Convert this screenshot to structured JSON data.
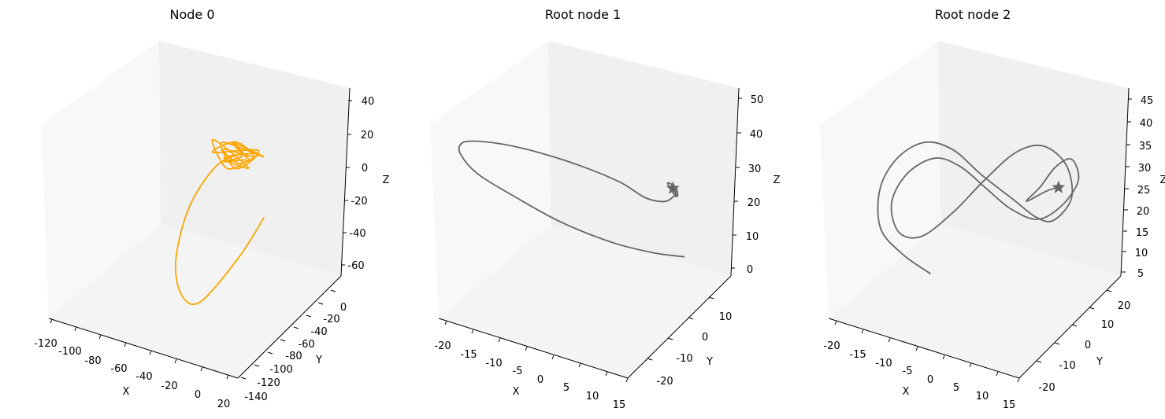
{
  "chart_data": [
    {
      "type": "line3d",
      "title": "Node 0",
      "xlabel": "X",
      "ylabel": "Y",
      "zlabel": "Z",
      "x_ticks": [
        -120,
        -100,
        -80,
        -60,
        -40,
        -20,
        0,
        20
      ],
      "y_ticks": [
        0,
        -20,
        -40,
        -60,
        -80,
        -100,
        -120,
        -140
      ],
      "z_ticks": [
        40,
        20,
        0,
        -20,
        -40,
        -60
      ],
      "series": [
        {
          "color": "#ffa500",
          "marker": "none",
          "note_points": "trajectory in data units (x, y, z)",
          "x": [
            -35,
            -20,
            -30,
            -10,
            -40,
            -25,
            -15,
            -45,
            -30,
            -20,
            -38,
            -28,
            -12,
            -34,
            -22,
            -48,
            -30,
            -18,
            -42,
            -26,
            -35,
            -50,
            -60,
            -55,
            -40,
            -20,
            0,
            10
          ],
          "y": [
            -40,
            -45,
            -50,
            -42,
            -48,
            -55,
            -40,
            -52,
            -46,
            -38,
            -50,
            -44,
            -48,
            -56,
            -42,
            -46,
            -60,
            -52,
            -40,
            -45,
            -35,
            -40,
            -60,
            -90,
            -110,
            -120,
            -100,
            -80
          ],
          "z": [
            20,
            15,
            25,
            18,
            22,
            12,
            20,
            16,
            24,
            14,
            19,
            10,
            22,
            17,
            8,
            21,
            13,
            18,
            6,
            15,
            10,
            0,
            -20,
            -40,
            -50,
            -45,
            -20,
            0
          ]
        }
      ]
    },
    {
      "type": "line3d",
      "title": "Root node 1",
      "xlabel": "X",
      "ylabel": "Y",
      "zlabel": "Z",
      "x_ticks": [
        -20,
        -15,
        -10,
        -5,
        0,
        5,
        10,
        15
      ],
      "y_ticks": [
        10,
        0,
        -10,
        -20
      ],
      "z_ticks": [
        50,
        40,
        30,
        20,
        10,
        0
      ],
      "series": [
        {
          "color": "#666666",
          "marker": "star-at-start",
          "x": [
            10,
            6,
            0,
            -8,
            -15,
            -20,
            -22,
            -21,
            -18,
            -12,
            -5,
            2,
            8,
            11,
            12,
            11,
            10,
            9.5,
            10.5,
            11,
            10,
            9.8,
            10.6,
            10.2,
            9.9,
            10.3,
            10.1
          ],
          "y": [
            10,
            5,
            0,
            -5,
            -10,
            -15,
            -18,
            -20,
            -21,
            -20,
            -18,
            -15,
            -12,
            -8,
            -2,
            4,
            6,
            4,
            5.5,
            5,
            4.5,
            5.2,
            4.8,
            5.1,
            4.9,
            5,
            5
          ],
          "z": [
            5,
            8,
            12,
            18,
            26,
            34,
            41,
            46,
            49,
            50,
            49,
            46,
            42,
            36,
            31,
            28,
            26,
            31,
            29,
            27,
            30,
            28,
            29.5,
            28.5,
            29,
            28.8,
            29
          ]
        }
      ]
    },
    {
      "type": "line3d",
      "title": "Root node 2",
      "xlabel": "X",
      "ylabel": "Y",
      "zlabel": "Z",
      "x_ticks": [
        -20,
        -15,
        -10,
        -5,
        0,
        5,
        10,
        15
      ],
      "y_ticks": [
        20,
        10,
        0,
        -10,
        -20
      ],
      "z_ticks": [
        45,
        40,
        35,
        30,
        25,
        20,
        15,
        10,
        5
      ],
      "series": [
        {
          "color": "#666666",
          "marker": "star-at-end",
          "x": [
            -8,
            -12,
            -15,
            -16,
            -14,
            -10,
            -5,
            0,
            5,
            8,
            10,
            12,
            10,
            6,
            2,
            -2,
            -6,
            -10,
            -13,
            -14,
            -12,
            -8,
            -4,
            0,
            4,
            8,
            11,
            13,
            12,
            10,
            8,
            6,
            9,
            11
          ],
          "y": [
            -8,
            -12,
            -16,
            -14,
            -10,
            -6,
            -4,
            -2,
            2,
            6,
            10,
            14,
            16,
            14,
            10,
            4,
            -2,
            -8,
            -12,
            -13,
            -10,
            -6,
            -3,
            0,
            3,
            7,
            12,
            15,
            14,
            11,
            8,
            6,
            9,
            10
          ],
          "z": [
            10,
            15,
            22,
            30,
            36,
            39,
            38,
            33,
            27,
            22,
            20,
            24,
            30,
            34,
            33,
            28,
            22,
            18,
            20,
            27,
            33,
            36,
            34,
            29,
            24,
            21,
            23,
            28,
            33,
            32,
            28,
            25,
            27,
            28
          ]
        }
      ]
    }
  ]
}
